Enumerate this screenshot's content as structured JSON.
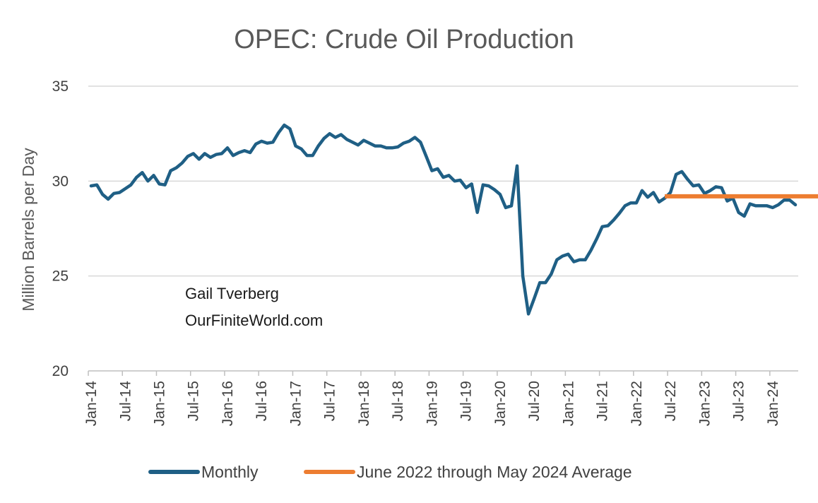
{
  "chart_data": {
    "type": "line",
    "title": "OPEC: Crude Oil Production",
    "xlabel": "",
    "ylabel": "Million Barrels  per Day",
    "ylim": [
      20,
      35
    ],
    "yticks": [
      "20",
      "25",
      "30",
      "35"
    ],
    "grid": "horizontal",
    "legend_position": "bottom",
    "annotations": [
      "Gail Tverberg",
      "OurFiniteWorld.com"
    ],
    "xtick_labels": [
      "Jan-14",
      "Jul-14",
      "Jan-15",
      "Jul-15",
      "Jan-16",
      "Jul-16",
      "Jan-17",
      "Jul-17",
      "Jan-18",
      "Jul-18",
      "Jan-19",
      "Jul-19",
      "Jan-20",
      "Jul-20",
      "Jan-21",
      "Jul-21",
      "Jan-22",
      "Jul-22",
      "Jan-23",
      "Jul-23",
      "Jan-24"
    ],
    "x_start": "Jan-14",
    "x_end": "Sep-24",
    "series": [
      {
        "name": "Monthly",
        "color": "#1f5f85",
        "values": [
          29.75,
          29.8,
          29.3,
          29.05,
          29.35,
          29.4,
          29.6,
          29.8,
          30.2,
          30.45,
          30.0,
          30.3,
          29.85,
          29.8,
          30.55,
          30.7,
          30.95,
          31.3,
          31.45,
          31.15,
          31.45,
          31.25,
          31.4,
          31.45,
          31.75,
          31.35,
          31.5,
          31.6,
          31.5,
          31.95,
          32.1,
          32.0,
          32.05,
          32.55,
          32.95,
          32.75,
          31.85,
          31.7,
          31.35,
          31.35,
          31.85,
          32.25,
          32.5,
          32.3,
          32.45,
          32.2,
          32.05,
          31.9,
          32.15,
          32.0,
          31.85,
          31.85,
          31.75,
          31.75,
          31.8,
          32.0,
          32.1,
          32.3,
          32.05,
          31.3,
          30.55,
          30.65,
          30.2,
          30.3,
          30.0,
          30.05,
          29.65,
          29.85,
          28.35,
          29.8,
          29.75,
          29.55,
          29.3,
          28.6,
          28.7,
          30.8,
          25.0,
          23.0,
          23.8,
          24.65,
          24.65,
          25.1,
          25.85,
          26.05,
          26.15,
          25.75,
          25.85,
          25.85,
          26.35,
          26.95,
          27.6,
          27.65,
          27.95,
          28.3,
          28.7,
          28.85,
          28.85,
          29.5,
          29.15,
          29.4,
          28.9,
          29.1,
          29.4,
          30.35,
          30.5,
          30.1,
          29.75,
          29.8,
          29.35,
          29.5,
          29.7,
          29.65,
          28.95,
          29.1,
          28.35,
          28.15,
          28.8,
          28.7,
          28.7,
          28.7,
          28.6,
          28.75,
          29.0,
          29.0,
          28.75
        ]
      },
      {
        "name": "June 2022 through May 2024 Average",
        "color": "#ed7d31",
        "start": "Jun-22",
        "end": "Sep-24",
        "value": 29.2
      }
    ]
  }
}
